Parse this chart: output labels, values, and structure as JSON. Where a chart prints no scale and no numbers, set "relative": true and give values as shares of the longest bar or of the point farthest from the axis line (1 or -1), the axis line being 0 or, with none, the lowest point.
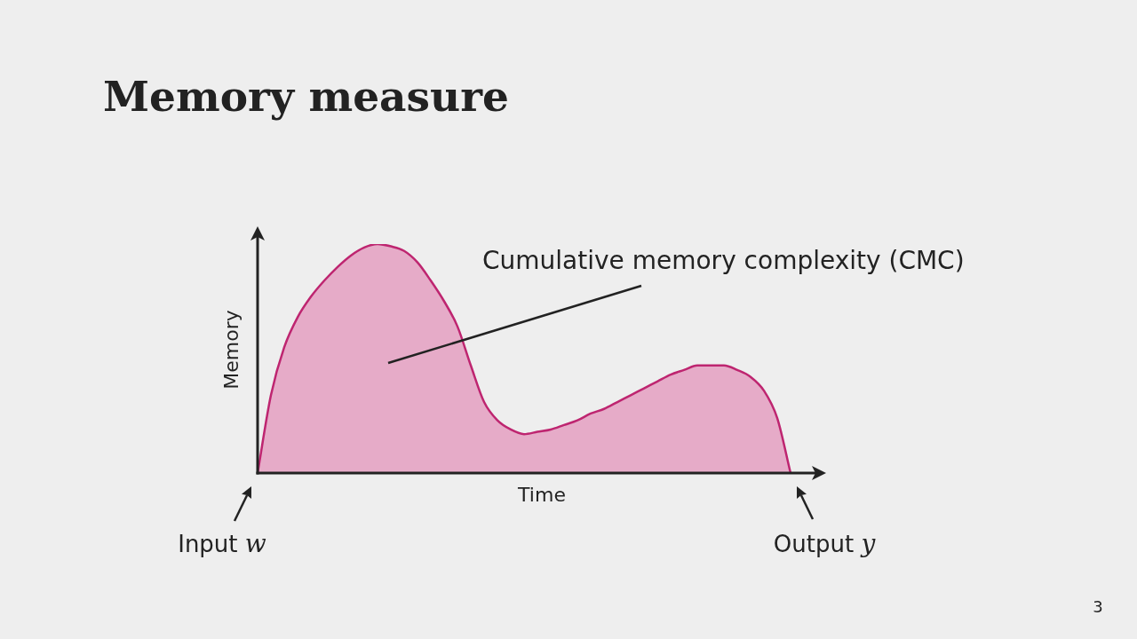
{
  "chart_data": {
    "type": "area",
    "title": "Memory measure",
    "xlabel": "Time",
    "ylabel": "Memory",
    "relative": true,
    "categories": [
      null,
      null,
      null,
      null,
      null,
      null,
      null,
      null,
      null,
      null,
      null,
      null,
      null,
      null,
      null,
      null,
      null,
      null,
      null,
      null,
      null,
      null,
      null,
      null,
      null,
      null,
      null,
      null,
      null,
      null,
      null,
      null,
      null,
      null,
      null,
      null,
      null,
      null,
      null,
      null,
      null
    ],
    "values": [
      0,
      0.34,
      0.55,
      0.68,
      0.77,
      0.84,
      0.9,
      0.95,
      0.985,
      1,
      0.99,
      0.97,
      0.92,
      0.84,
      0.75,
      0.64,
      0.47,
      0.31,
      0.23,
      0.19,
      0.17,
      0.18,
      0.19,
      0.21,
      0.23,
      0.26,
      0.28,
      0.31,
      0.34,
      0.37,
      0.4,
      0.43,
      0.45,
      0.47,
      0.47,
      0.47,
      0.45,
      0.42,
      0.36,
      0.24,
      0
    ],
    "color": "#e6abc8",
    "annotations": [
      "Cumulative memory complexity (CMC)",
      "Input w",
      "Output y",
      "3"
    ]
  }
}
